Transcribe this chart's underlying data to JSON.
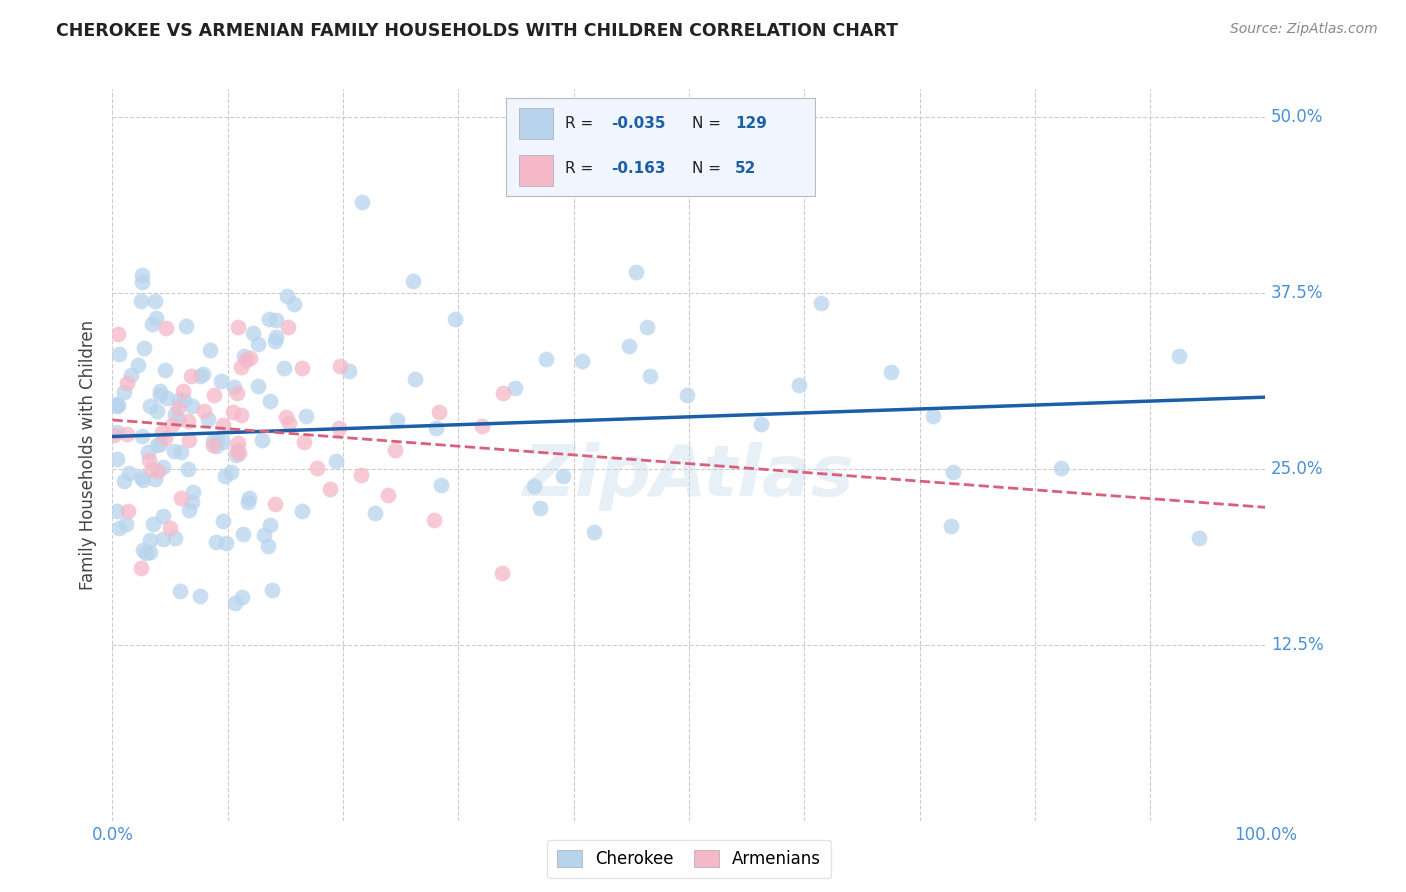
{
  "title": "CHEROKEE VS ARMENIAN FAMILY HOUSEHOLDS WITH CHILDREN CORRELATION CHART",
  "source": "Source: ZipAtlas.com",
  "ylabel": "Family Households with Children",
  "watermark": "ZipAtlas",
  "cherokee_R": -0.035,
  "cherokee_N": 129,
  "armenian_R": -0.163,
  "armenian_N": 52,
  "cherokee_color": "#b8d4ed",
  "armenian_color": "#f5b8c8",
  "cherokee_line_color": "#1a5fa8",
  "armenian_line_color": "#d9607a",
  "xlim": [
    0.0,
    1.0
  ],
  "ylim": [
    0.0,
    0.52
  ],
  "x_ticks": [
    0.0,
    0.1,
    0.2,
    0.3,
    0.4,
    0.5,
    0.6,
    0.7,
    0.8,
    0.9,
    1.0
  ],
  "y_ticks": [
    0.0,
    0.125,
    0.25,
    0.375,
    0.5
  ],
  "background_color": "#ffffff",
  "grid_color": "#cccccc",
  "tick_color": "#4a90d9",
  "title_color": "#222222"
}
